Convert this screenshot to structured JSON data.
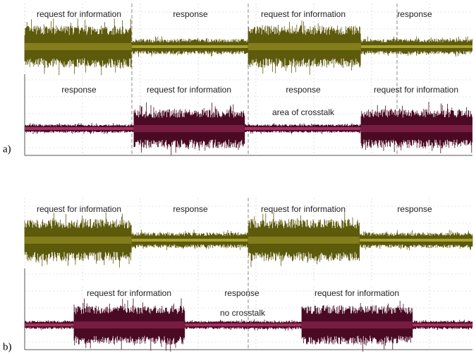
{
  "panels": [
    {
      "label": "a)",
      "top_labels": [
        "request for information",
        "response",
        "request for information",
        "response"
      ],
      "bottom_labels": [
        "response",
        "request for information",
        "response",
        "request for information"
      ],
      "note": "area of crosstalk"
    },
    {
      "label": "b)",
      "top_labels": [
        "request for information",
        "response",
        "request for information",
        "response"
      ],
      "bottom_labels": [
        "request for information",
        "response",
        "request for information"
      ],
      "note": "no crosstalk"
    }
  ]
}
